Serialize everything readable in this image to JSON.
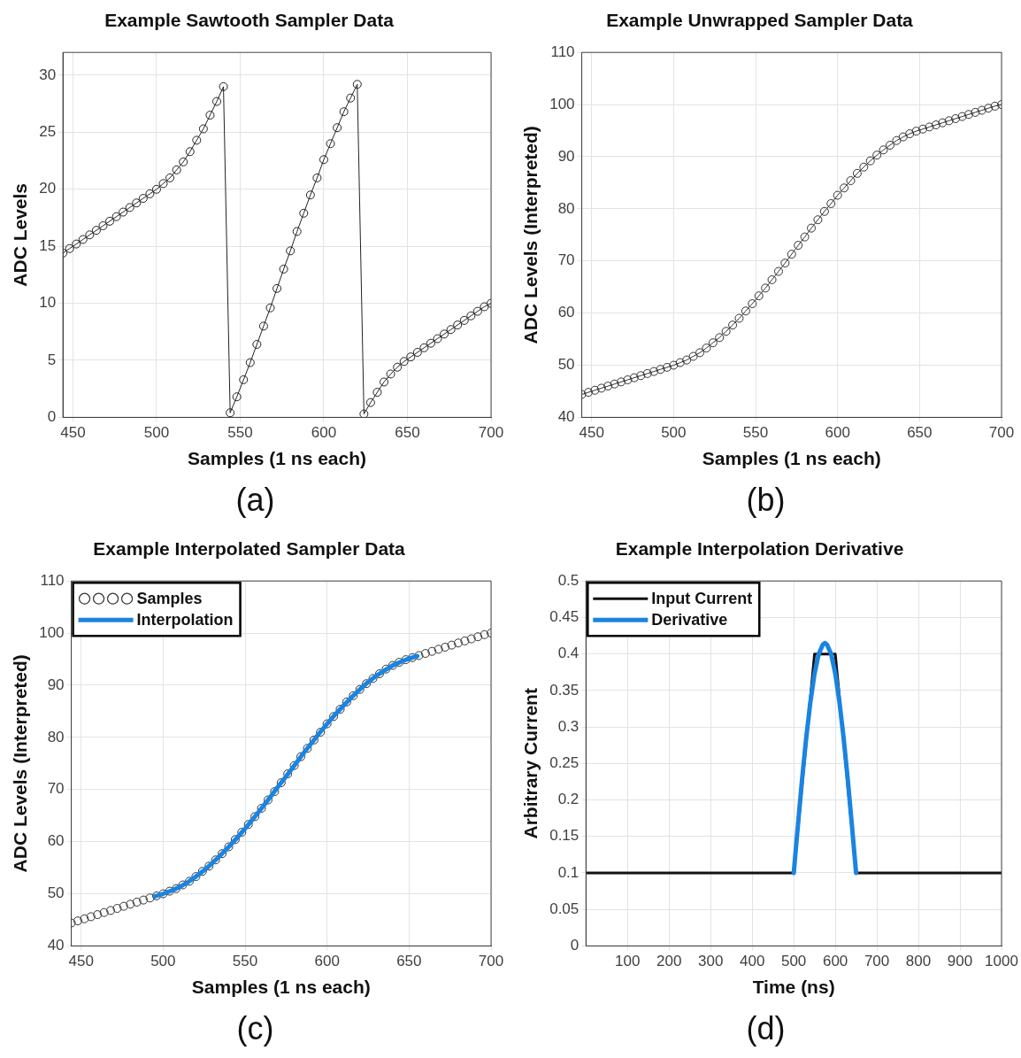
{
  "chart_data": [
    {
      "type": "line",
      "title": "Example Sawtooth Sampler Data",
      "xlabel": "Samples (1 ns each)",
      "ylabel": "ADC Levels",
      "annotations": [
        "(a)"
      ],
      "marker": "circle",
      "grid": true,
      "xlim": [
        444,
        700
      ],
      "xticks": [
        450,
        500,
        550,
        600,
        650,
        700
      ],
      "ylim": [
        0,
        32
      ],
      "yticks": [
        0,
        5,
        10,
        15,
        20,
        25,
        30
      ],
      "x": [
        444,
        448,
        452,
        456,
        460,
        464,
        468,
        472,
        476,
        480,
        484,
        488,
        492,
        496,
        500,
        504,
        508,
        512,
        516,
        520,
        524,
        528,
        532,
        536,
        540,
        544,
        548,
        552,
        556,
        560,
        564,
        568,
        572,
        576,
        580,
        584,
        588,
        592,
        596,
        600,
        604,
        608,
        612,
        616,
        620,
        624,
        628,
        632,
        636,
        640,
        644,
        648,
        652,
        656,
        660,
        664,
        668,
        672,
        676,
        680,
        684,
        688,
        692,
        696,
        700
      ],
      "series": [
        {
          "color": "#222222",
          "values": [
            14.4,
            14.8,
            15.2,
            15.6,
            16,
            16.4,
            16.8,
            17.2,
            17.6,
            18,
            18.4,
            18.8,
            19.2,
            19.6,
            20,
            20.5,
            21,
            21.7,
            22.4,
            23.3,
            24.3,
            25.3,
            26.5,
            27.7,
            29,
            0.4,
            1.8,
            3.3,
            4.8,
            6.4,
            8,
            9.6,
            11.3,
            13,
            14.6,
            16.3,
            17.9,
            19.5,
            21,
            22.6,
            24,
            25.4,
            26.8,
            28,
            29.2,
            0.3,
            1.3,
            2.2,
            3.1,
            3.8,
            4.4,
            4.9,
            5.3,
            5.7,
            6.1,
            6.5,
            6.9,
            7.3,
            7.7,
            8.1,
            8.5,
            8.9,
            9.3,
            9.7,
            10
          ]
        }
      ]
    },
    {
      "type": "line",
      "title": "Example Unwrapped Sampler Data",
      "xlabel": "Samples (1 ns each)",
      "ylabel": "ADC Levels (Interpreted)",
      "annotations": [
        "(b)"
      ],
      "marker": "circle",
      "grid": true,
      "xlim": [
        444,
        700
      ],
      "xticks": [
        450,
        500,
        550,
        600,
        650,
        700
      ],
      "ylim": [
        40,
        110
      ],
      "yticks": [
        40,
        50,
        60,
        70,
        80,
        90,
        100,
        110
      ],
      "x": [
        444,
        448,
        452,
        456,
        460,
        464,
        468,
        472,
        476,
        480,
        484,
        488,
        492,
        496,
        500,
        504,
        508,
        512,
        516,
        520,
        524,
        528,
        532,
        536,
        540,
        544,
        548,
        552,
        556,
        560,
        564,
        568,
        572,
        576,
        580,
        584,
        588,
        592,
        596,
        600,
        604,
        608,
        612,
        616,
        620,
        624,
        628,
        632,
        636,
        640,
        644,
        648,
        652,
        656,
        660,
        664,
        668,
        672,
        676,
        680,
        684,
        688,
        692,
        696,
        700
      ],
      "series": [
        {
          "color": "#333333",
          "values": [
            44.4,
            44.8,
            45.2,
            45.6,
            46,
            46.4,
            46.8,
            47.2,
            47.6,
            48,
            48.4,
            48.8,
            49.2,
            49.6,
            50,
            50.5,
            51,
            51.7,
            52.4,
            53.3,
            54.3,
            55.3,
            56.5,
            57.7,
            59,
            60.4,
            61.8,
            63.3,
            64.8,
            66.4,
            68,
            69.6,
            71.3,
            73,
            74.6,
            76.3,
            77.9,
            79.5,
            81,
            82.6,
            84,
            85.4,
            86.8,
            88,
            89.2,
            90.3,
            91.3,
            92.2,
            93.1,
            93.8,
            94.4,
            94.9,
            95.3,
            95.7,
            96.1,
            96.5,
            96.9,
            97.3,
            97.7,
            98.1,
            98.5,
            98.9,
            99.3,
            99.7,
            100
          ]
        }
      ]
    },
    {
      "type": "line",
      "title": "Example Interpolated Sampler Data",
      "xlabel": "Samples (1 ns each)",
      "ylabel": "ADC Levels (Interpreted)",
      "annotations": [
        "(c)"
      ],
      "marker": "circle",
      "grid": true,
      "legend": "top left",
      "xlim": [
        444,
        700
      ],
      "xticks": [
        450,
        500,
        550,
        600,
        650,
        700
      ],
      "ylim": [
        40,
        110
      ],
      "yticks": [
        40,
        50,
        60,
        70,
        80,
        90,
        100,
        110
      ],
      "x": [
        444,
        448,
        452,
        456,
        460,
        464,
        468,
        472,
        476,
        480,
        484,
        488,
        492,
        496,
        500,
        504,
        508,
        512,
        516,
        520,
        524,
        528,
        532,
        536,
        540,
        544,
        548,
        552,
        556,
        560,
        564,
        568,
        572,
        576,
        580,
        584,
        588,
        592,
        596,
        600,
        604,
        608,
        612,
        616,
        620,
        624,
        628,
        632,
        636,
        640,
        644,
        648,
        652,
        656,
        660,
        664,
        668,
        672,
        676,
        680,
        684,
        688,
        692,
        696,
        700
      ],
      "series": [
        {
          "name": "Samples",
          "type": "scatter",
          "color": "#333333",
          "values": [
            44.4,
            44.8,
            45.2,
            45.6,
            46,
            46.4,
            46.8,
            47.2,
            47.6,
            48,
            48.4,
            48.8,
            49.2,
            49.6,
            50,
            50.5,
            51,
            51.7,
            52.4,
            53.3,
            54.3,
            55.3,
            56.5,
            57.7,
            59,
            60.4,
            61.8,
            63.3,
            64.8,
            66.4,
            68,
            69.6,
            71.3,
            73,
            74.6,
            76.3,
            77.9,
            79.5,
            81,
            82.6,
            84,
            85.4,
            86.8,
            88,
            89.2,
            90.3,
            91.3,
            92.2,
            93.1,
            93.8,
            94.4,
            94.9,
            95.3,
            95.7,
            96.1,
            96.5,
            96.9,
            97.3,
            97.7,
            98.1,
            98.5,
            98.9,
            99.3,
            99.7,
            100
          ]
        },
        {
          "name": "Interpolation",
          "type": "line",
          "marker": "none",
          "color": "#1a84e0",
          "x": [
            495,
            500,
            505,
            510,
            515,
            520,
            525,
            530,
            535,
            540,
            545,
            550,
            555,
            560,
            565,
            570,
            575,
            580,
            585,
            590,
            595,
            600,
            605,
            610,
            615,
            620,
            625,
            630,
            635,
            640,
            645,
            650,
            655
          ],
          "values": [
            49.5,
            50,
            50.6,
            51.3,
            52.2,
            53.3,
            54.5,
            55.9,
            57.4,
            59,
            60.7,
            62.5,
            64.4,
            66.4,
            68.4,
            70.5,
            72.5,
            74.6,
            76.7,
            78.7,
            80.7,
            82.6,
            84.4,
            86.1,
            87.7,
            89.2,
            90.6,
            91.8,
            92.8,
            93.8,
            94.5,
            95.1,
            95.6
          ]
        }
      ]
    },
    {
      "type": "line",
      "title": "Example Interpolation Derivative",
      "xlabel": "Time (ns)",
      "ylabel": "Arbitrary Current",
      "annotations": [
        "(d)"
      ],
      "grid": true,
      "legend": "top left",
      "xlim": [
        0,
        1000
      ],
      "xticks": [
        100,
        200,
        300,
        400,
        500,
        600,
        700,
        800,
        900,
        1000
      ],
      "ylim": [
        0,
        0.5
      ],
      "yticks": [
        0,
        0.05,
        0.1,
        0.15,
        0.2,
        0.25,
        0.3,
        0.35,
        0.4,
        0.45,
        0.5
      ],
      "series": [
        {
          "name": "Input Current",
          "color": "#111111",
          "x": [
            0,
            500,
            550,
            600,
            650,
            1000
          ],
          "values": [
            0.1,
            0.1,
            0.4,
            0.4,
            0.1,
            0.1
          ]
        },
        {
          "name": "Derivative",
          "color": "#1a84e0",
          "x": [
            500,
            510,
            520,
            530,
            540,
            550,
            560,
            570,
            575,
            580,
            590,
            600,
            610,
            620,
            630,
            640,
            650
          ],
          "values": [
            0.1,
            0.165,
            0.228,
            0.285,
            0.334,
            0.373,
            0.4,
            0.413,
            0.415,
            0.413,
            0.4,
            0.373,
            0.334,
            0.285,
            0.228,
            0.165,
            0.1
          ]
        }
      ]
    }
  ]
}
